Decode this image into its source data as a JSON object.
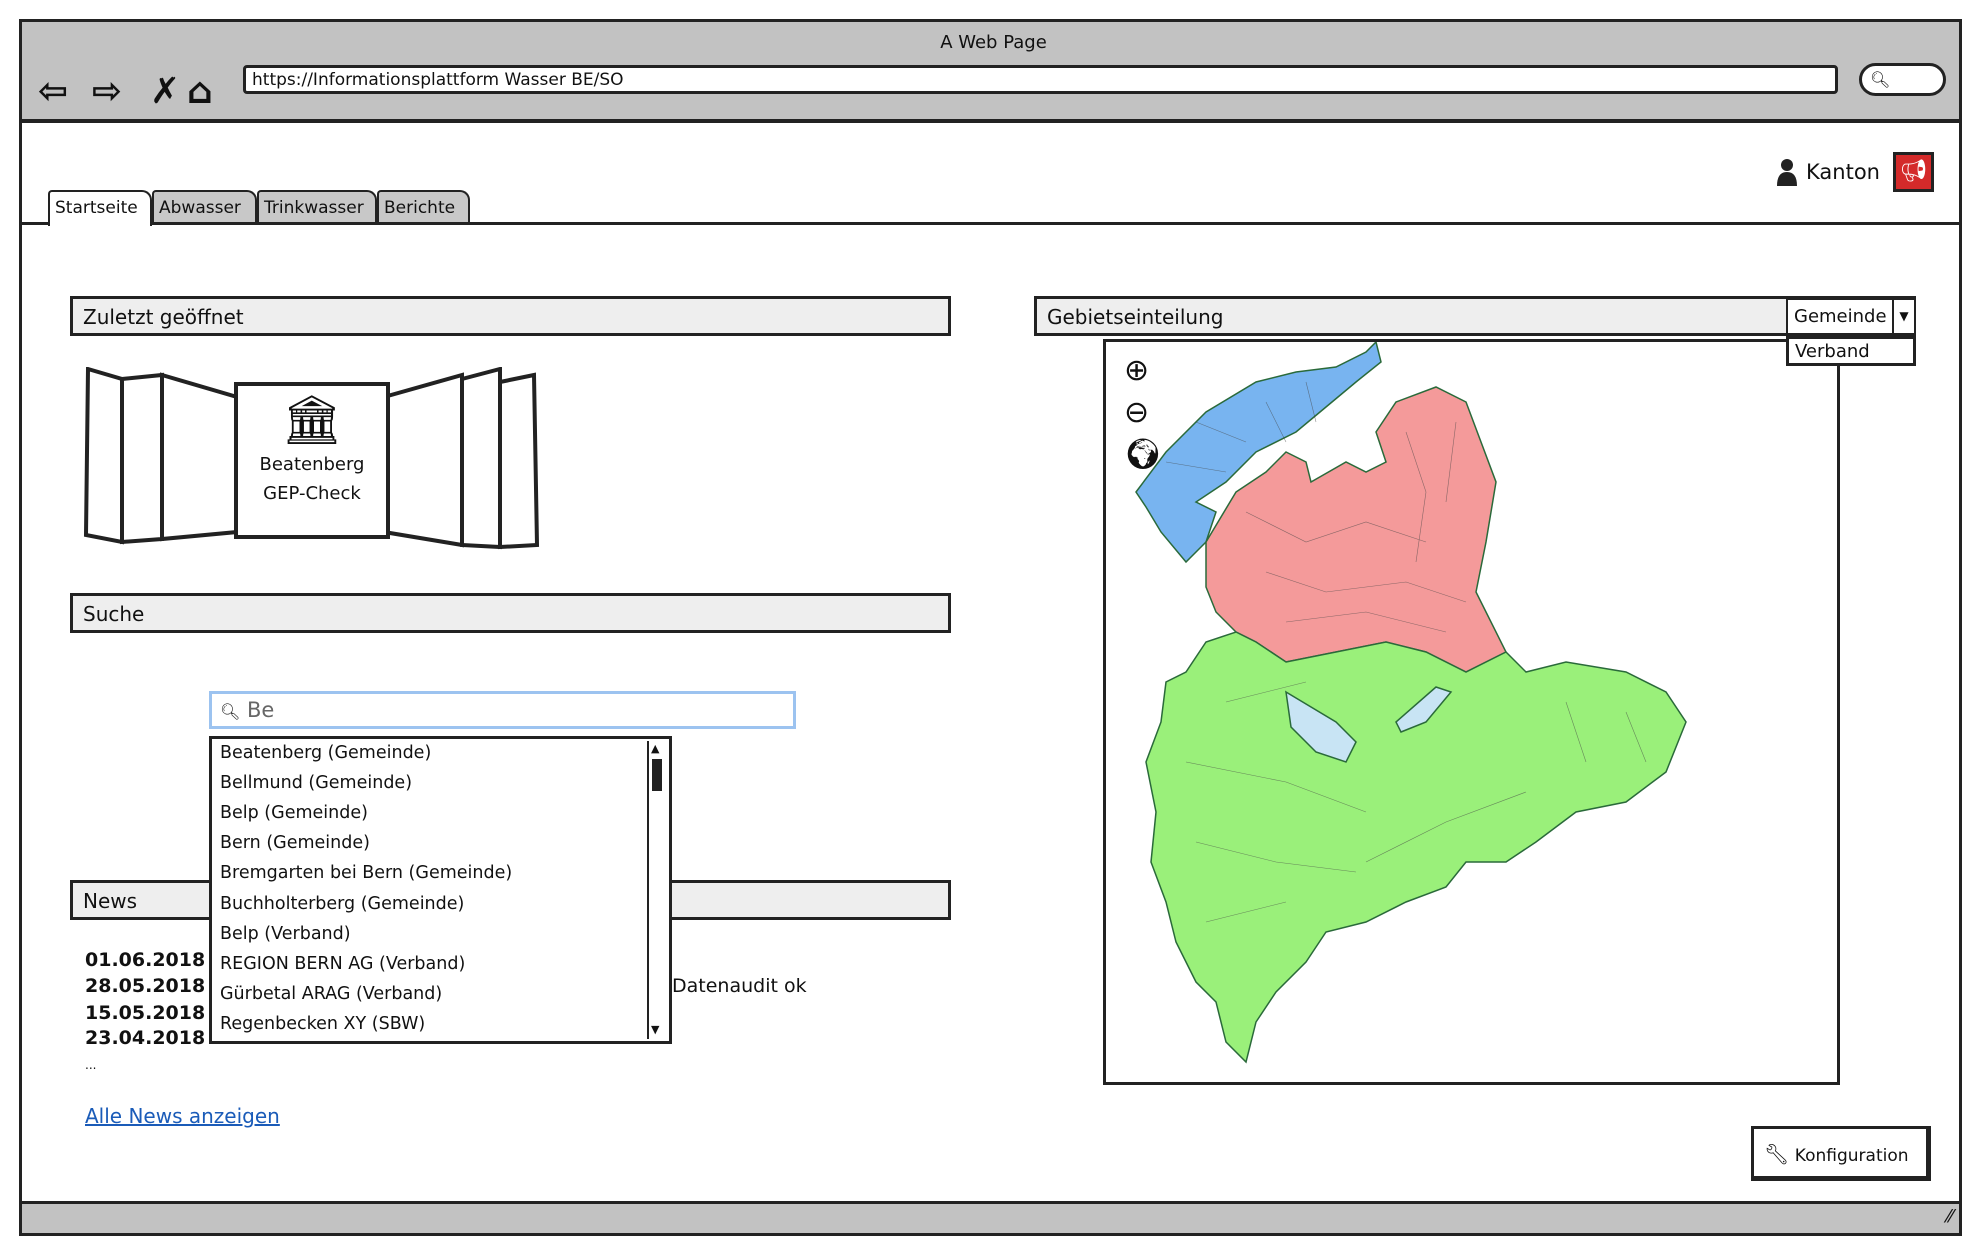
{
  "browser": {
    "title": "A Web Page",
    "url": "https://Informationsplattform Wasser BE/SO",
    "nav_icons": [
      "back-icon",
      "forward-icon",
      "stop-icon",
      "home-icon"
    ],
    "search_icon": "search-icon"
  },
  "header": {
    "user_label": "Kanton",
    "user_icon": "user-icon",
    "notification_icon": "megaphone-icon",
    "notification_color": "#d42a2a"
  },
  "tabs": [
    {
      "label": "Startseite",
      "active": true
    },
    {
      "label": "Abwasser"
    },
    {
      "label": "Trinkwasser"
    },
    {
      "label": "Berichte"
    }
  ],
  "recent": {
    "title": "Zuletzt geöffnet",
    "item": {
      "icon": "institution-icon",
      "line1": "Beatenberg",
      "line2": "GEP-Check"
    }
  },
  "search": {
    "title": "Suche",
    "value": "Be",
    "results": [
      "Beatenberg (Gemeinde)",
      "Bellmund (Gemeinde)",
      "Belp (Gemeinde)",
      "Bern (Gemeinde)",
      "Bremgarten bei Bern (Gemeinde)",
      "Buchholterberg (Gemeinde)",
      "Belp (Verband)",
      "REGION BERN AG (Verband)",
      "Gürbetal ARAG (Verband)",
      "Regenbecken XY (SBW)"
    ]
  },
  "news": {
    "title": "News",
    "items": [
      {
        "date": "01.06.2018",
        "text": ""
      },
      {
        "date": "28.05.2018",
        "text": "Datenaudit ok"
      },
      {
        "date": "15.05.2018",
        "text": ""
      },
      {
        "date": "23.04.2018",
        "text": ""
      }
    ],
    "more": "...",
    "all_link": "Alle News anzeigen"
  },
  "map": {
    "title": "Gebietseinteilung",
    "selected": "Gemeinde",
    "options": [
      "Verband"
    ],
    "tools": [
      "zoom-in-icon",
      "zoom-out-icon",
      "globe-icon"
    ],
    "colors": {
      "blue": "#78b4f0",
      "red": "#f49a9a",
      "green": "#9af07a",
      "lake": "#c8e4f4"
    }
  },
  "config_button": "Konfiguration"
}
